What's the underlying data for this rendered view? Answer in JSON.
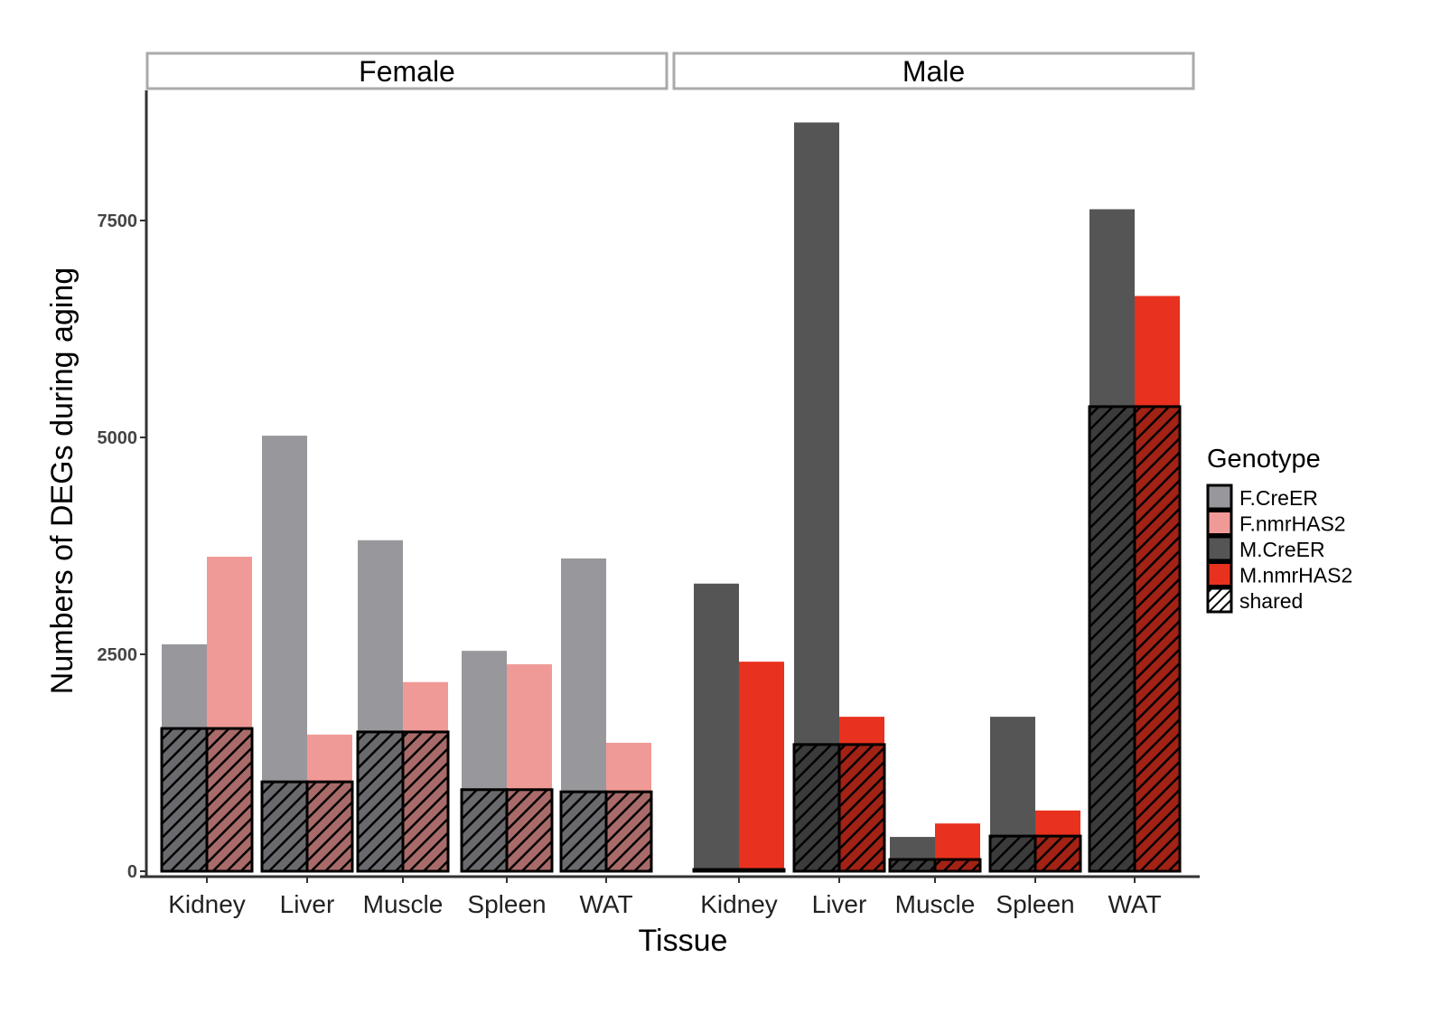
{
  "chart_data": {
    "type": "bar",
    "subtype": "faceted grouped bar with shared overlay",
    "xlabel": "Tissue",
    "ylabel": "Numbers of DEGs during aging",
    "ylim": [
      0,
      9000
    ],
    "yticks": [
      0,
      2500,
      5000,
      7500
    ],
    "ytick_labels": [
      "0",
      "2500",
      "5000",
      "7500"
    ],
    "grid": false,
    "legend": {
      "title": "Genotype",
      "placement": "right",
      "entries": [
        "F.CreER",
        "F.nmrHAS2",
        "M.CreER",
        "M.nmrHAS2",
        "shared"
      ]
    },
    "colors": {
      "F.CreER": "#98979c",
      "F.nmrHAS2": "#f09a97",
      "M.CreER": "#555555",
      "M.nmrHAS2": "#e8311e"
    },
    "facets": [
      {
        "name": "Female",
        "categories": [
          "Kidney",
          "Liver",
          "Muscle",
          "Spleen",
          "WAT"
        ],
        "series": [
          {
            "name": "F.CreER",
            "values": [
              2615,
              5020,
              3815,
              2540,
              3605
            ]
          },
          {
            "name": "F.nmrHAS2",
            "values": [
              3625,
              1575,
              2180,
              2385,
              1480
            ]
          }
        ],
        "shared": [
          1645,
          1030,
          1605,
          940,
          915
        ]
      },
      {
        "name": "Male",
        "categories": [
          "Kidney",
          "Liver",
          "Muscle",
          "Spleen",
          "WAT"
        ],
        "series": [
          {
            "name": "M.CreER",
            "values": [
              3315,
              8630,
              395,
              1780,
              7630
            ]
          },
          {
            "name": "M.nmrHAS2",
            "values": [
              2415,
              1780,
              550,
              700,
              6630
            ]
          }
        ],
        "shared": [
          20,
          1460,
          135,
          405,
          5355
        ]
      }
    ]
  }
}
